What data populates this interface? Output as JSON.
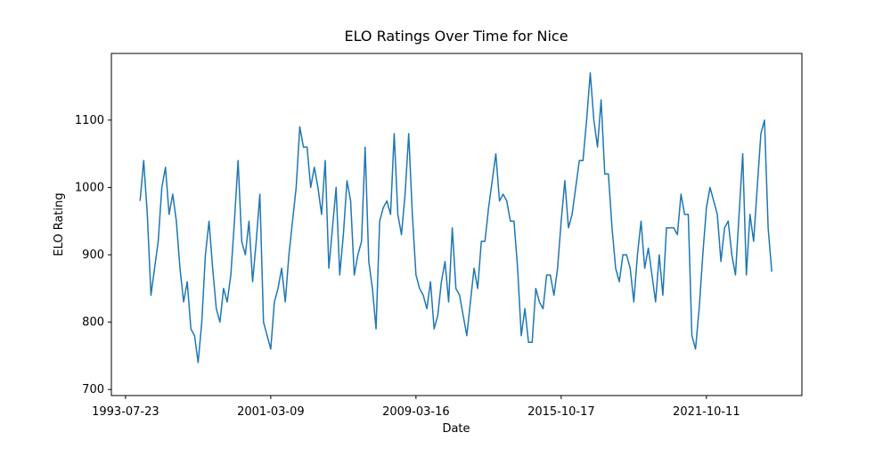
{
  "chart_data": {
    "type": "line",
    "title": "ELO Ratings Over Time for Nice",
    "x_label": "Date",
    "y_label": "ELO Rating",
    "xlim": [
      -3.9,
      186.3
    ],
    "ylim": [
      691,
      1199
    ],
    "xticks": [
      {
        "value": 0,
        "label": "1993-07-23"
      },
      {
        "value": 40,
        "label": "2001-03-09"
      },
      {
        "value": 80,
        "label": "2009-03-16"
      },
      {
        "value": 120,
        "label": "2015-10-17"
      },
      {
        "value": 160,
        "label": "2021-10-11"
      }
    ],
    "yticks": [
      700,
      800,
      900,
      1000,
      1100
    ],
    "x": [
      4,
      5,
      6,
      7,
      8,
      9,
      10,
      11,
      12,
      13,
      14,
      15,
      16,
      17,
      18,
      19,
      20,
      21,
      22,
      23,
      24,
      25,
      26,
      27,
      28,
      29,
      30,
      31,
      32,
      33,
      34,
      35,
      36,
      37,
      38,
      39,
      40,
      41,
      42,
      43,
      44,
      45,
      46,
      47,
      48,
      49,
      50,
      51,
      52,
      53,
      54,
      55,
      56,
      57,
      58,
      59,
      60,
      61,
      62,
      63,
      64,
      65,
      66,
      67,
      68,
      69,
      70,
      71,
      72,
      73,
      74,
      75,
      76,
      77,
      78,
      79,
      80,
      81,
      82,
      83,
      84,
      85,
      86,
      87,
      88,
      89,
      90,
      91,
      92,
      93,
      94,
      95,
      96,
      97,
      98,
      99,
      100,
      101,
      102,
      103,
      104,
      105,
      106,
      107,
      108,
      109,
      110,
      111,
      112,
      113,
      114,
      115,
      116,
      117,
      118,
      119,
      120,
      121,
      122,
      123,
      124,
      125,
      126,
      127,
      128,
      129,
      130,
      131,
      132,
      133,
      134,
      135,
      136,
      137,
      138,
      139,
      140,
      141,
      142,
      143,
      144,
      145,
      146,
      147,
      148,
      149,
      150,
      151,
      152,
      153,
      154,
      155,
      156,
      157,
      158,
      159,
      160,
      161,
      162,
      163,
      164,
      165,
      166,
      167,
      168,
      169,
      170,
      171,
      172,
      173,
      174,
      175,
      176,
      177,
      178
    ],
    "series": [
      {
        "color": "#1f77b4",
        "values": [
          980,
          1040,
          960,
          840,
          880,
          920,
          1000,
          1030,
          960,
          990,
          950,
          880,
          830,
          860,
          790,
          780,
          740,
          800,
          900,
          950,
          880,
          820,
          800,
          850,
          830,
          870,
          950,
          1040,
          920,
          900,
          950,
          860,
          920,
          990,
          800,
          780,
          760,
          830,
          850,
          880,
          830,
          900,
          950,
          1000,
          1090,
          1060,
          1060,
          1000,
          1030,
          1000,
          960,
          1040,
          880,
          940,
          1000,
          870,
          930,
          1010,
          980,
          870,
          900,
          920,
          1060,
          890,
          850,
          790,
          950,
          970,
          980,
          960,
          1080,
          960,
          930,
          990,
          1080,
          960,
          870,
          850,
          840,
          820,
          860,
          790,
          810,
          860,
          890,
          830,
          940,
          850,
          840,
          810,
          780,
          830,
          880,
          850,
          920,
          920,
          970,
          1010,
          1050,
          980,
          990,
          980,
          950,
          950,
          880,
          780,
          820,
          770,
          770,
          850,
          830,
          820,
          870,
          870,
          840,
          880,
          950,
          1010,
          940,
          960,
          1000,
          1040,
          1040,
          1100,
          1170,
          1100,
          1060,
          1130,
          1020,
          1020,
          940,
          880,
          860,
          900,
          900,
          880,
          830,
          900,
          950,
          880,
          910,
          870,
          830,
          900,
          840,
          940,
          940,
          940,
          930,
          990,
          960,
          960,
          780,
          760,
          820,
          900,
          970,
          1000,
          980,
          960,
          890,
          940,
          950,
          900,
          870,
          960,
          1050,
          870,
          960,
          920,
          1000,
          1080,
          1100,
          940,
          875
        ]
      }
    ]
  }
}
